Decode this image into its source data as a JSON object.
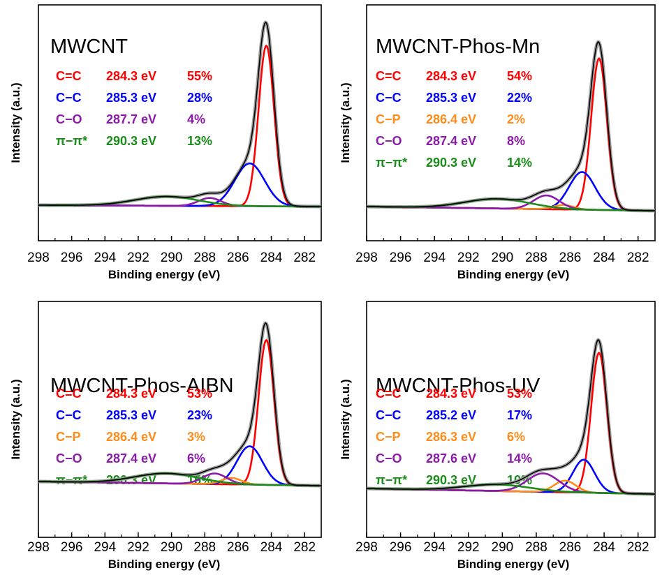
{
  "colors": {
    "C=C": "#ff0000",
    "C-C": "#0000ff",
    "C-P": "#ff8c1a",
    "C-O": "#8b1aa8",
    "pi-pi": "#1a8c1a",
    "envelope": "#000000",
    "measured": "#a0a0a0"
  },
  "chart_data": [
    {
      "type": "line",
      "title": "MWCNT",
      "xlabel": "Binding energy (eV)",
      "ylabel": "Intensity (a.u.)",
      "xlim": [
        298,
        281
      ],
      "x_reversed": true,
      "x_ticks": [
        "298",
        "296",
        "294",
        "292",
        "290",
        "288",
        "286",
        "284",
        "282"
      ],
      "grid": false,
      "legend": "top-left",
      "components": [
        {
          "label": "C=C",
          "energy": "284.3 eV",
          "percent": "55%",
          "center": 284.3,
          "fwhm": 1.1,
          "area": 55
        },
        {
          "label": "C−C",
          "energy": "285.3 eV",
          "percent": "28%",
          "center": 285.3,
          "fwhm": 2.1,
          "area": 28
        },
        {
          "label": "C−O",
          "energy": "287.7 eV",
          "percent": "4%",
          "center": 287.7,
          "fwhm": 1.6,
          "area": 4
        },
        {
          "label": "π−π*",
          "energy": "290.3 eV",
          "percent": "13%",
          "center": 290.3,
          "fwhm": 4.5,
          "area": 13
        }
      ]
    },
    {
      "type": "line",
      "title": "MWCNT-Phos-Mn",
      "xlabel": "Binding energy (eV)",
      "ylabel": "Intensity (a.u.)",
      "xlim": [
        298,
        281
      ],
      "x_reversed": true,
      "x_ticks": [
        "298",
        "296",
        "294",
        "292",
        "290",
        "288",
        "286",
        "284",
        "282"
      ],
      "grid": false,
      "legend": "top-left",
      "components": [
        {
          "label": "C=C",
          "energy": "284.3 eV",
          "percent": "54%",
          "center": 284.3,
          "fwhm": 1.1,
          "area": 54
        },
        {
          "label": "C−C",
          "energy": "285.3 eV",
          "percent": "22%",
          "center": 285.3,
          "fwhm": 1.8,
          "area": 22
        },
        {
          "label": "C−P",
          "energy": "286.4 eV",
          "percent": "2%",
          "center": 286.4,
          "fwhm": 1.4,
          "area": 2
        },
        {
          "label": "C−O",
          "energy": "287.4 eV",
          "percent": "8%",
          "center": 287.4,
          "fwhm": 1.8,
          "area": 8
        },
        {
          "label": "π−π*",
          "energy": "290.3 eV",
          "percent": "14%",
          "center": 290.3,
          "fwhm": 4.5,
          "area": 14
        }
      ]
    },
    {
      "type": "line",
      "title": "MWCNT-Phos-AIBN",
      "xlabel": "Binding energy (eV)",
      "ylabel": "Intensity (a.u.)",
      "xlim": [
        298,
        281
      ],
      "x_reversed": true,
      "x_ticks": [
        "298",
        "296",
        "294",
        "292",
        "290",
        "288",
        "286",
        "284",
        "282"
      ],
      "grid": false,
      "legend": "top-left",
      "components": [
        {
          "label": "C=C",
          "energy": "284.3 eV",
          "percent": "53%",
          "center": 284.3,
          "fwhm": 1.1,
          "area": 53
        },
        {
          "label": "C−C",
          "energy": "285.3 eV",
          "percent": "23%",
          "center": 285.3,
          "fwhm": 1.8,
          "area": 23
        },
        {
          "label": "C−P",
          "energy": "286.4 eV",
          "percent": "3%",
          "center": 286.4,
          "fwhm": 1.4,
          "area": 3
        },
        {
          "label": "C−O",
          "energy": "287.4 eV",
          "percent": "6%",
          "center": 287.4,
          "fwhm": 1.7,
          "area": 6
        },
        {
          "label": "π−π*",
          "energy": "290.3 eV",
          "percent": "15%",
          "center": 290.3,
          "fwhm": 4.5,
          "area": 15
        }
      ]
    },
    {
      "type": "line",
      "title": "MWCNT-Phos-UV",
      "xlabel": "Binding energy (eV)",
      "ylabel": "Intensity (a.u.)",
      "xlim": [
        298,
        281
      ],
      "x_reversed": true,
      "x_ticks": [
        "298",
        "296",
        "294",
        "292",
        "290",
        "288",
        "286",
        "284",
        "282"
      ],
      "grid": false,
      "legend": "top-left",
      "components": [
        {
          "label": "C=C",
          "energy": "284.3 eV",
          "percent": "53%",
          "center": 284.3,
          "fwhm": 1.1,
          "area": 53
        },
        {
          "label": "C−C",
          "energy": "285.2 eV",
          "percent": "17%",
          "center": 285.2,
          "fwhm": 1.5,
          "area": 17
        },
        {
          "label": "C−P",
          "energy": "286.3 eV",
          "percent": "6%",
          "center": 286.3,
          "fwhm": 1.5,
          "area": 6
        },
        {
          "label": "C−O",
          "energy": "287.6 eV",
          "percent": "14%",
          "center": 287.6,
          "fwhm": 2.2,
          "area": 14
        },
        {
          "label": "π−π*",
          "energy": "290.3 eV",
          "percent": "10%",
          "center": 290.3,
          "fwhm": 4.5,
          "area": 10
        }
      ]
    }
  ]
}
